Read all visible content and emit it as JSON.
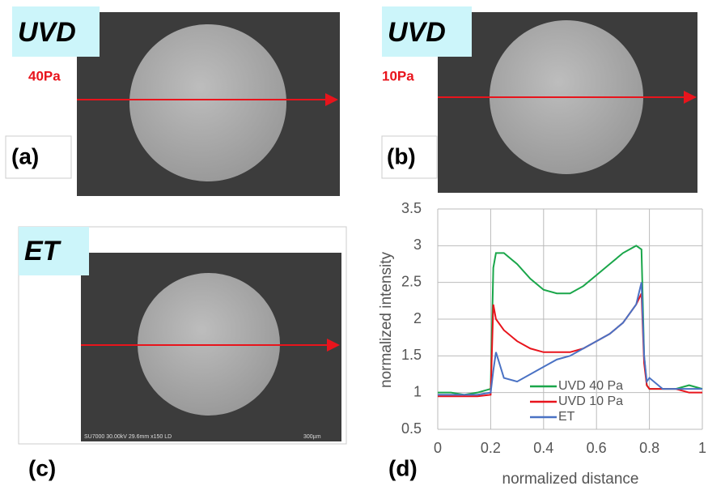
{
  "panels": [
    {
      "label": "(a)",
      "tag": "UVD",
      "pressure": "40Pa"
    },
    {
      "label": "(b)",
      "tag": "UVD",
      "pressure": "10Pa"
    },
    {
      "label": "(c)",
      "tag": "ET",
      "caption": "SU7000 30.00kV 29.6mm x150 LD",
      "scale": "300µm"
    }
  ],
  "chart_data": {
    "type": "line",
    "panel_label": "(d)",
    "x_label": "normalized distance",
    "y_label": "normalized intensity",
    "xlim": [
      0,
      1
    ],
    "xticks": [
      0,
      0.2,
      0.4,
      0.6,
      0.8,
      1
    ],
    "ylim": [
      0.5,
      3.5
    ],
    "yticks": [
      0.5,
      1,
      1.5,
      2,
      2.5,
      3,
      3.5
    ],
    "grid": true,
    "legend": "bottom",
    "x": [
      0,
      0.05,
      0.1,
      0.15,
      0.2,
      0.21,
      0.22,
      0.25,
      0.3,
      0.35,
      0.4,
      0.45,
      0.5,
      0.55,
      0.6,
      0.65,
      0.7,
      0.75,
      0.77,
      0.78,
      0.79,
      0.8,
      0.85,
      0.9,
      0.95,
      1
    ],
    "series": [
      {
        "name": "UVD 40 Pa",
        "color": "#1aa64a",
        "values": [
          1,
          1,
          0.97,
          1,
          1.05,
          2.7,
          2.9,
          2.9,
          2.75,
          2.55,
          2.4,
          2.35,
          2.35,
          2.45,
          2.6,
          2.75,
          2.9,
          3,
          2.95,
          1.5,
          1.1,
          1.05,
          1.05,
          1.05,
          1.1,
          1.05
        ]
      },
      {
        "name": "UVD 10 Pa",
        "color": "#e8141c",
        "values": [
          0.95,
          0.95,
          0.95,
          0.95,
          0.97,
          2.2,
          2,
          1.85,
          1.7,
          1.6,
          1.55,
          1.55,
          1.55,
          1.6,
          1.7,
          1.8,
          1.95,
          2.2,
          2.35,
          1.4,
          1.1,
          1.05,
          1.05,
          1.05,
          1,
          1
        ]
      },
      {
        "name": "ET",
        "color": "#4a72c4",
        "values": [
          0.97,
          0.97,
          0.97,
          0.97,
          1,
          1.3,
          1.55,
          1.2,
          1.15,
          1.25,
          1.35,
          1.45,
          1.5,
          1.6,
          1.7,
          1.8,
          1.95,
          2.2,
          2.5,
          1.5,
          1.15,
          1.2,
          1.05,
          1.05,
          1.05,
          1.05
        ]
      }
    ]
  }
}
